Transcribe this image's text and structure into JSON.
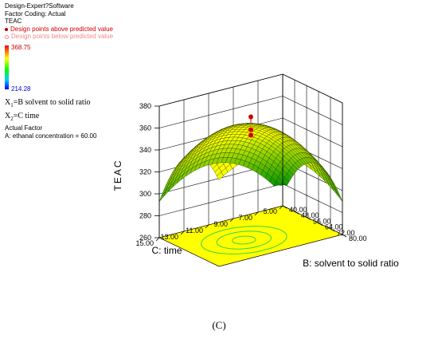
{
  "info": {
    "software": "Design-Expert?Software",
    "factor_coding": "Factor Coding: Actual",
    "response": "TEAC",
    "legend_above": "Design points above predicted value",
    "legend_below": "Design points below predicted value",
    "scale_max": "368.75",
    "scale_min": "214.28",
    "x1_var": "X",
    "x1_sub": "1",
    "x1_def": "=B solvent to solid ratio",
    "x2_var": "X",
    "x2_sub": "2",
    "x2_def": "=C time",
    "actual_factor_title": "Actual Factor",
    "actual_factor_value": "A: ethanal concentration = 60.00"
  },
  "colors": {
    "surface_high": "#ffff00",
    "surface_low": "#00a000",
    "floor": "#ffff00",
    "contour": "#3cd24a",
    "point_above": "#d00000"
  },
  "caption": "(C)",
  "chart_data": {
    "type": "surface3d",
    "title": "",
    "zlabel": "TEAC",
    "xlabel": "B: solvent to solid ratio",
    "ylabel": "C: time",
    "x_range": [
      40,
      80
    ],
    "y_range": [
      5,
      15
    ],
    "z_range": [
      260,
      380
    ],
    "x_ticks": [
      "40.00",
      "48.00",
      "56.00",
      "64.00",
      "72.00",
      "80.00"
    ],
    "y_ticks": [
      "5.00",
      "7.00",
      "9.00",
      "11.00",
      "13.00",
      "15.00"
    ],
    "z_ticks": [
      "260",
      "280",
      "300",
      "320",
      "340",
      "360",
      "380"
    ],
    "surface_model": {
      "peak_x": 62,
      "peak_y": 10.8,
      "peak_z": 345,
      "corner_values": {
        "x40_y5": 280,
        "x40_y15": 282,
        "x80_y15": 315,
        "x80_y5": 287
      }
    },
    "design_points_above": [
      {
        "x": 60,
        "y": 10,
        "z": 368.75
      },
      {
        "x": 60,
        "y": 10,
        "z": 357
      },
      {
        "x": 60,
        "y": 10,
        "z": 352
      }
    ]
  }
}
